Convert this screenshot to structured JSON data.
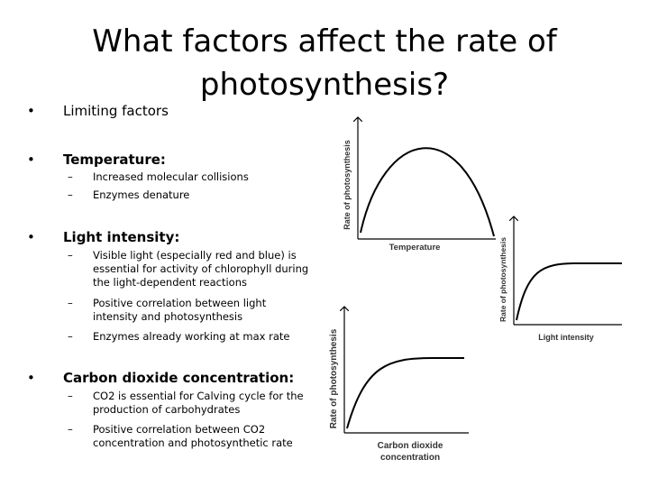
{
  "title": "What factors affect the rate of photosynthesis?",
  "bullets": [
    {
      "text": "Limiting factors",
      "subs": []
    },
    {
      "text": "Temperature:",
      "subs": [
        "Increased molecular collisions",
        "Enzymes denature"
      ]
    },
    {
      "text": "Light intensity:",
      "subs": [
        "Visible light (especially red and blue) is essential for activity of chlorophyll during the light-dependent reactions",
        "Positive correlation between light intensity and photosynthesis",
        "Enzymes already working at max rate"
      ]
    },
    {
      "text": "Carbon dioxide concentration:",
      "subs": [
        "CO2 is essential for Calving cycle for the production of carbohydrates",
        "Positive correlation between CO2 concentration and photosynthetic rate"
      ]
    }
  ],
  "graphs": [
    {
      "y_label": "Rate of photosynthesis",
      "x_label": [
        "Temperature"
      ]
    },
    {
      "y_label": "Rate of photosynthesis",
      "x_label": [
        "Light intensity"
      ]
    },
    {
      "y_label": "Rate of photosynthesis",
      "x_label": [
        "Carbon dioxide",
        "concentration"
      ]
    }
  ]
}
